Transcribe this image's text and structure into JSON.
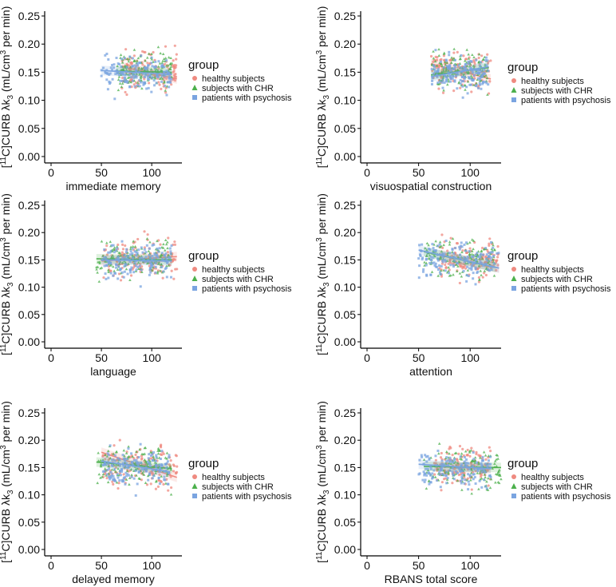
{
  "colors": {
    "healthy": "#ef8a80",
    "chr": "#4cb04c",
    "psychosis": "#7aa4e0",
    "axis": "#000000"
  },
  "legend_title": "group",
  "y_axis_label_parts": [
    "[",
    "11",
    "C]CURB λk",
    "3",
    " (mL/cm",
    "3",
    " per min)"
  ],
  "chart_data": [
    {
      "type": "scatter",
      "xlabel": "immediate memory",
      "xlim": [
        0,
        130
      ],
      "ylim": [
        0,
        0.25
      ],
      "x_ticks": [
        0,
        50,
        100
      ],
      "y_ticks": [
        0.0,
        0.05,
        0.1,
        0.15,
        0.2,
        0.25
      ],
      "x_tick_labels": [
        "0",
        "50",
        "100"
      ],
      "y_tick_labels": [
        "0.00",
        "0.05",
        "0.10",
        "0.15",
        "0.20",
        "0.25"
      ],
      "legend": [
        "healthy subjects",
        "subjects with CHR",
        "patients with psychosis"
      ],
      "legend_position": "right",
      "series": [
        {
          "name": "healthy subjects",
          "marker": "circle",
          "x_range": [
            70,
            125
          ],
          "y_center": 0.152,
          "y_spread": 0.028,
          "fit": [
            [
              70,
              0.16
            ],
            [
              125,
              0.138
            ]
          ]
        },
        {
          "name": "subjects with CHR",
          "marker": "triangle",
          "x_range": [
            65,
            120
          ],
          "y_center": 0.152,
          "y_spread": 0.027,
          "fit": [
            [
              65,
              0.152
            ],
            [
              120,
              0.15
            ]
          ]
        },
        {
          "name": "patients with psychosis",
          "marker": "square",
          "x_range": [
            50,
            120
          ],
          "y_center": 0.148,
          "y_spread": 0.026,
          "fit": [
            [
              50,
              0.153
            ],
            [
              120,
              0.146
            ]
          ]
        }
      ]
    },
    {
      "type": "scatter",
      "xlabel": "visuospatial construction",
      "xlim": [
        0,
        130
      ],
      "ylim": [
        0,
        0.25
      ],
      "x_ticks": [
        0,
        50,
        100
      ],
      "y_ticks": [
        0.0,
        0.05,
        0.1,
        0.15,
        0.2,
        0.25
      ],
      "x_tick_labels": [
        "0",
        "50",
        "100"
      ],
      "y_tick_labels": [
        "0.00",
        "0.05",
        "0.10",
        "0.15",
        "0.20",
        "0.25"
      ],
      "legend": [
        "healthy subjects",
        "subjects with CHR",
        "patients with psychosis"
      ],
      "legend_position": "right",
      "series": [
        {
          "name": "healthy subjects",
          "marker": "circle",
          "x_range": [
            62,
            120
          ],
          "y_center": 0.152,
          "y_spread": 0.028,
          "fit": [
            [
              62,
              0.165
            ],
            [
              120,
              0.138
            ]
          ]
        },
        {
          "name": "subjects with CHR",
          "marker": "triangle",
          "x_range": [
            62,
            118
          ],
          "y_center": 0.152,
          "y_spread": 0.027,
          "fit": [
            [
              62,
              0.145
            ],
            [
              118,
              0.158
            ]
          ]
        },
        {
          "name": "patients with psychosis",
          "marker": "square",
          "x_range": [
            62,
            118
          ],
          "y_center": 0.148,
          "y_spread": 0.026,
          "fit": [
            [
              62,
              0.142
            ],
            [
              118,
              0.16
            ]
          ]
        }
      ]
    },
    {
      "type": "scatter",
      "xlabel": "language",
      "xlim": [
        0,
        130
      ],
      "ylim": [
        0,
        0.25
      ],
      "x_ticks": [
        0,
        50,
        100
      ],
      "y_ticks": [
        0.0,
        0.05,
        0.1,
        0.15,
        0.2,
        0.25
      ],
      "x_tick_labels": [
        "0",
        "50",
        "100"
      ],
      "y_tick_labels": [
        "0.00",
        "0.05",
        "0.10",
        "0.15",
        "0.20",
        "0.25"
      ],
      "legend": [
        "healthy subjects",
        "subjects with CHR",
        "patients with psychosis"
      ],
      "legend_position": "right",
      "series": [
        {
          "name": "healthy subjects",
          "marker": "circle",
          "x_range": [
            50,
            125
          ],
          "y_center": 0.152,
          "y_spread": 0.028,
          "fit": [
            [
              50,
              0.148
            ],
            [
              125,
              0.156
            ]
          ]
        },
        {
          "name": "subjects with CHR",
          "marker": "triangle",
          "x_range": [
            45,
            120
          ],
          "y_center": 0.151,
          "y_spread": 0.027,
          "fit": [
            [
              45,
              0.152
            ],
            [
              120,
              0.15
            ]
          ]
        },
        {
          "name": "patients with psychosis",
          "marker": "square",
          "x_range": [
            50,
            120
          ],
          "y_center": 0.148,
          "y_spread": 0.026,
          "fit": [
            [
              50,
              0.15
            ],
            [
              120,
              0.148
            ]
          ]
        }
      ]
    },
    {
      "type": "scatter",
      "xlabel": "attention",
      "xlim": [
        0,
        130
      ],
      "ylim": [
        0,
        0.25
      ],
      "x_ticks": [
        0,
        50,
        100
      ],
      "y_ticks": [
        0.0,
        0.05,
        0.1,
        0.15,
        0.2,
        0.25
      ],
      "x_tick_labels": [
        "0",
        "50",
        "100"
      ],
      "y_tick_labels": [
        "0.00",
        "0.05",
        "0.10",
        "0.15",
        "0.20",
        "0.25"
      ],
      "legend": [
        "healthy subjects",
        "subjects with CHR",
        "patients with psychosis"
      ],
      "legend_position": "right",
      "series": [
        {
          "name": "healthy subjects",
          "marker": "circle",
          "x_range": [
            70,
            128
          ],
          "y_center": 0.15,
          "y_spread": 0.028,
          "fit": [
            [
              70,
              0.16
            ],
            [
              128,
              0.135
            ]
          ]
        },
        {
          "name": "subjects with CHR",
          "marker": "triangle",
          "x_range": [
            55,
            125
          ],
          "y_center": 0.15,
          "y_spread": 0.027,
          "fit": [
            [
              55,
              0.165
            ],
            [
              125,
              0.136
            ]
          ]
        },
        {
          "name": "patients with psychosis",
          "marker": "square",
          "x_range": [
            50,
            128
          ],
          "y_center": 0.148,
          "y_spread": 0.026,
          "fit": [
            [
              50,
              0.168
            ],
            [
              128,
              0.135
            ]
          ]
        }
      ]
    },
    {
      "type": "scatter",
      "xlabel": "delayed memory",
      "xlim": [
        0,
        130
      ],
      "ylim": [
        0,
        0.25
      ],
      "x_ticks": [
        0,
        50,
        100
      ],
      "y_ticks": [
        0.0,
        0.05,
        0.1,
        0.15,
        0.2,
        0.25
      ],
      "x_tick_labels": [
        "0",
        "50",
        "100"
      ],
      "y_tick_labels": [
        "0.00",
        "0.05",
        "0.10",
        "0.15",
        "0.20",
        "0.25"
      ],
      "legend": [
        "healthy subjects",
        "subjects with CHR",
        "patients with psychosis"
      ],
      "legend_position": "right",
      "series": [
        {
          "name": "healthy subjects",
          "marker": "circle",
          "x_range": [
            50,
            125
          ],
          "y_center": 0.152,
          "y_spread": 0.03,
          "fit": [
            [
              50,
              0.178
            ],
            [
              125,
              0.132
            ]
          ]
        },
        {
          "name": "subjects with CHR",
          "marker": "triangle",
          "x_range": [
            45,
            120
          ],
          "y_center": 0.152,
          "y_spread": 0.027,
          "fit": [
            [
              45,
              0.16
            ],
            [
              120,
              0.148
            ]
          ]
        },
        {
          "name": "patients with psychosis",
          "marker": "square",
          "x_range": [
            50,
            118
          ],
          "y_center": 0.148,
          "y_spread": 0.026,
          "fit": [
            [
              50,
              0.162
            ],
            [
              118,
              0.142
            ]
          ]
        }
      ]
    },
    {
      "type": "scatter",
      "xlabel": "RBANS total score",
      "xlim": [
        0,
        130
      ],
      "ylim": [
        0,
        0.25
      ],
      "x_ticks": [
        0,
        50,
        100
      ],
      "y_ticks": [
        0.0,
        0.05,
        0.1,
        0.15,
        0.2,
        0.25
      ],
      "x_tick_labels": [
        "0",
        "50",
        "100"
      ],
      "y_tick_labels": [
        "0.00",
        "0.05",
        "0.10",
        "0.15",
        "0.20",
        "0.25"
      ],
      "legend": [
        "healthy subjects",
        "subjects with CHR",
        "patients with psychosis"
      ],
      "legend_position": "right",
      "series": [
        {
          "name": "healthy subjects",
          "marker": "circle",
          "x_range": [
            65,
            120
          ],
          "y_center": 0.15,
          "y_spread": 0.028,
          "fit": [
            [
              65,
              0.152
            ],
            [
              120,
              0.148
            ]
          ]
        },
        {
          "name": "subjects with CHR",
          "marker": "triangle",
          "x_range": [
            55,
            130
          ],
          "y_center": 0.15,
          "y_spread": 0.027,
          "fit": [
            [
              55,
              0.152
            ],
            [
              130,
              0.15
            ]
          ]
        },
        {
          "name": "patients with psychosis",
          "marker": "square",
          "x_range": [
            50,
            120
          ],
          "y_center": 0.148,
          "y_spread": 0.026,
          "fit": [
            [
              50,
              0.156
            ],
            [
              120,
              0.148
            ]
          ]
        }
      ]
    }
  ]
}
